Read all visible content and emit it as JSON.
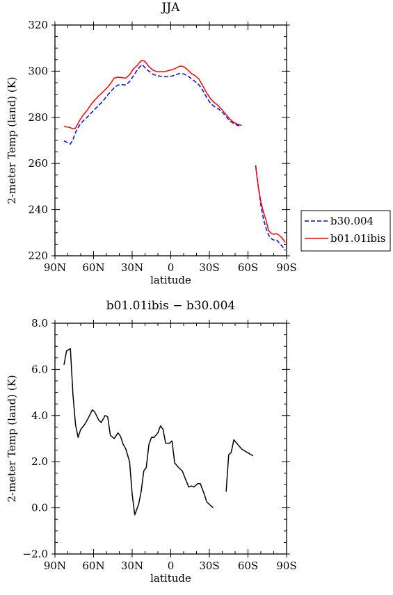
{
  "chart_data": [
    {
      "type": "line",
      "title": "JJA",
      "xlabel": "latitude",
      "ylabel": "2-meter Temp (land) (K)",
      "xlim": [
        -90,
        90
      ],
      "ylim": [
        220,
        320
      ],
      "x_ticks": [
        -90,
        -60,
        -30,
        0,
        30,
        60,
        90
      ],
      "x_tick_labels": [
        "90N",
        "60N",
        "30N",
        "0",
        "30S",
        "60S",
        "90S"
      ],
      "y_ticks": [
        220,
        240,
        260,
        280,
        300,
        320
      ],
      "y_tick_labels": [
        "220",
        "240",
        "260",
        "280",
        "300",
        "320"
      ],
      "grid": false,
      "legend_position": "outside-right",
      "series": [
        {
          "name": "b30.004",
          "color": "#0000ff",
          "dash": "dashed",
          "segments": [
            [
              [
                -83,
                269.8
              ],
              [
                -80,
                269
              ],
              [
                -78,
                268.4
              ],
              [
                -76,
                270.4
              ],
              [
                -74,
                273.5
              ],
              [
                -71,
                276.5
              ],
              [
                -68,
                278.5
              ],
              [
                -65,
                280
              ],
              [
                -62,
                281.8
              ],
              [
                -59,
                283.5
              ],
              [
                -56,
                285.2
              ],
              [
                -53,
                286.8
              ],
              [
                -50,
                289
              ],
              [
                -47,
                291
              ],
              [
                -44,
                292.8
              ],
              [
                -41,
                294
              ],
              [
                -38,
                294.2
              ],
              [
                -35,
                294
              ],
              [
                -32,
                295.5
              ],
              [
                -29,
                298
              ],
              [
                -26,
                300.5
              ],
              [
                -24,
                302
              ],
              [
                -22,
                302.8
              ],
              [
                -20,
                301.5
              ],
              [
                -17,
                300
              ],
              [
                -14,
                298.7
              ],
              [
                -11,
                298.1
              ],
              [
                -8,
                297.8
              ],
              [
                -5,
                297.6
              ],
              [
                -2,
                297.6
              ],
              [
                1,
                297.9
              ],
              [
                4,
                298.5
              ],
              [
                7,
                299
              ],
              [
                10,
                298.8
              ],
              [
                13,
                298
              ],
              [
                16,
                296.8
              ],
              [
                19,
                295.5
              ],
              [
                22,
                294
              ],
              [
                25,
                291.5
              ],
              [
                28,
                288.5
              ],
              [
                31,
                286
              ],
              [
                34,
                284.6
              ],
              [
                37,
                283.7
              ],
              [
                40,
                282.3
              ],
              [
                43,
                280.3
              ],
              [
                46,
                278.4
              ],
              [
                49,
                277.3
              ],
              [
                52,
                276.5
              ],
              [
                55,
                276.3
              ]
            ],
            [
              [
                66,
                259.2
              ],
              [
                68,
                250
              ],
              [
                70,
                242
              ],
              [
                72,
                236
              ],
              [
                74,
                232
              ],
              [
                76,
                229
              ],
              [
                78,
                227.5
              ],
              [
                80,
                226.8
              ],
              [
                82,
                227
              ],
              [
                84,
                225.8
              ],
              [
                86,
                224.5
              ],
              [
                88,
                223.2
              ],
              [
                89,
                222.3
              ]
            ]
          ]
        },
        {
          "name": "b01.01ibis",
          "color": "#ff0000",
          "dash": "solid",
          "segments": [
            [
              [
                -83,
                276
              ],
              [
                -80,
                275.8
              ],
              [
                -78,
                275.5
              ],
              [
                -76,
                275
              ],
              [
                -74,
                275.3
              ],
              [
                -71,
                278.5
              ],
              [
                -68,
                281
              ],
              [
                -65,
                283
              ],
              [
                -62,
                285.5
              ],
              [
                -59,
                287.5
              ],
              [
                -56,
                289.3
              ],
              [
                -53,
                290.8
              ],
              [
                -50,
                292.5
              ],
              [
                -47,
                294.5
              ],
              [
                -44,
                297
              ],
              [
                -41,
                297.4
              ],
              [
                -38,
                297.2
              ],
              [
                -35,
                297
              ],
              [
                -32,
                298.5
              ],
              [
                -29,
                301
              ],
              [
                -26,
                302.5
              ],
              [
                -24,
                304
              ],
              [
                -22,
                304.7
              ],
              [
                -20,
                304.2
              ],
              [
                -17,
                302
              ],
              [
                -14,
                300.5
              ],
              [
                -11,
                299.8
              ],
              [
                -8,
                299.8
              ],
              [
                -5,
                299.8
              ],
              [
                -2,
                300.2
              ],
              [
                1,
                300.6
              ],
              [
                4,
                301.3
              ],
              [
                7,
                302.2
              ],
              [
                10,
                302
              ],
              [
                13,
                300.7
              ],
              [
                16,
                299
              ],
              [
                19,
                298
              ],
              [
                22,
                296.5
              ],
              [
                25,
                293.5
              ],
              [
                28,
                290.5
              ],
              [
                31,
                288
              ],
              [
                34,
                286.3
              ],
              [
                37,
                285
              ],
              [
                40,
                283.2
              ],
              [
                43,
                281.2
              ],
              [
                46,
                279.2
              ],
              [
                49,
                277.8
              ],
              [
                52,
                277
              ],
              [
                55,
                276.5
              ]
            ],
            [
              [
                66,
                258.6
              ],
              [
                68,
                250
              ],
              [
                70,
                243.5
              ],
              [
                72,
                239
              ],
              [
                74,
                235.5
              ],
              [
                76,
                231
              ],
              [
                78,
                229.8
              ],
              [
                80,
                229.3
              ],
              [
                82,
                229.6
              ],
              [
                84,
                229
              ],
              [
                86,
                228
              ],
              [
                88,
                226.6
              ],
              [
                89,
                225.8
              ]
            ]
          ]
        }
      ]
    },
    {
      "type": "line",
      "title": "b01.01ibis − b30.004",
      "xlabel": "latitude",
      "ylabel": "2-meter Temp (land) (K)",
      "xlim": [
        -90,
        90
      ],
      "ylim": [
        -2,
        8
      ],
      "x_ticks": [
        -90,
        -60,
        -30,
        0,
        30,
        60,
        90
      ],
      "x_tick_labels": [
        "90N",
        "60N",
        "30N",
        "0",
        "30S",
        "60S",
        "90S"
      ],
      "y_ticks": [
        -2,
        0,
        2,
        4,
        6,
        8
      ],
      "y_tick_labels": [
        "−2.0",
        "0.0",
        "2.0",
        "4.0",
        "6.0",
        "8.0"
      ],
      "grid": false,
      "series": [
        {
          "color": "#000000",
          "dash": "solid",
          "segments": [
            [
              [
                -83,
                6.2
              ],
              [
                -81,
                6.8
              ],
              [
                -78,
                6.9
              ],
              [
                -76,
                4.9
              ],
              [
                -74,
                3.6
              ],
              [
                -72,
                3.05
              ],
              [
                -70,
                3.4
              ],
              [
                -67,
                3.6
              ],
              [
                -64,
                3.9
              ],
              [
                -61,
                4.25
              ],
              [
                -59,
                4.15
              ],
              [
                -56,
                3.8
              ],
              [
                -54,
                3.7
              ],
              [
                -51,
                4.0
              ],
              [
                -49,
                3.95
              ],
              [
                -47,
                3.15
              ],
              [
                -44,
                3.0
              ],
              [
                -41,
                3.25
              ],
              [
                -39,
                3.1
              ],
              [
                -37,
                2.75
              ],
              [
                -35,
                2.55
              ],
              [
                -32,
                2.0
              ],
              [
                -30,
                0.6
              ],
              [
                -28,
                -0.3
              ],
              [
                -25,
                0.15
              ],
              [
                -23,
                0.7
              ],
              [
                -21,
                1.6
              ],
              [
                -19,
                1.75
              ],
              [
                -17,
                2.75
              ],
              [
                -15,
                3.05
              ],
              [
                -13,
                3.05
              ],
              [
                -10,
                3.25
              ],
              [
                -8,
                3.55
              ],
              [
                -6,
                3.4
              ],
              [
                -4,
                2.8
              ],
              [
                -1,
                2.8
              ],
              [
                1,
                2.9
              ],
              [
                3,
                1.95
              ],
              [
                6,
                1.75
              ],
              [
                9,
                1.6
              ],
              [
                11,
                1.3
              ],
              [
                14,
                0.9
              ],
              [
                16,
                0.95
              ],
              [
                18,
                0.9
              ],
              [
                21,
                1.05
              ],
              [
                23,
                1.05
              ],
              [
                26,
                0.6
              ],
              [
                28,
                0.25
              ],
              [
                31,
                0.1
              ],
              [
                33,
                0.0
              ]
            ],
            [
              [
                43,
                0.7
              ],
              [
                45,
                2.3
              ],
              [
                47,
                2.4
              ],
              [
                49,
                2.95
              ],
              [
                52,
                2.75
              ],
              [
                55,
                2.55
              ],
              [
                58,
                2.45
              ],
              [
                61,
                2.35
              ],
              [
                64,
                2.25
              ]
            ]
          ]
        }
      ]
    }
  ],
  "legend": [
    {
      "label": "b30.004",
      "color": "#0000ff",
      "dash": "dashed"
    },
    {
      "label": "b01.01ibis",
      "color": "#ff0000",
      "dash": "solid"
    }
  ]
}
